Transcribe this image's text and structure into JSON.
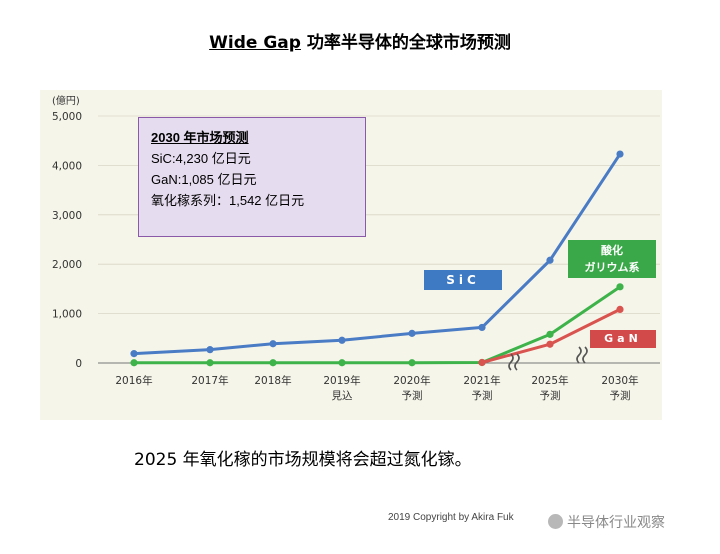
{
  "title": {
    "part1": "Wide Gap",
    "part2": " 功率半导体的全球市场预测"
  },
  "callout": {
    "heading": "2030 年市场预测",
    "lines": [
      "SiC:4,230 亿日元",
      "GaN:1,085 亿日元",
      "氧化稼系列：1,542 亿日元"
    ]
  },
  "tags": {
    "sic": "SiC",
    "ga2o3_line1": "酸化",
    "ga2o3_line2": "ガリウム系",
    "gan": "GaN"
  },
  "conclusion": "2025 年氧化稼的市场规模将会超过氮化镓。",
  "copyright": "2019 Copyright by Akira Fuk",
  "watermark": "半导体行业观察",
  "colors": {
    "sic": "#4a7cc5",
    "ga2o3": "#3db34a",
    "gan": "#d9534f",
    "panel": "#f6f5ea"
  },
  "chart_data": {
    "type": "line",
    "unit_label": "(億円)",
    "ylim": [
      0,
      5000
    ],
    "yticks": [
      "0",
      "1,000",
      "2,000",
      "3,000",
      "4,000",
      "5,000"
    ],
    "categories": [
      {
        "l1": "2016年",
        "l2": ""
      },
      {
        "l1": "2017年",
        "l2": ""
      },
      {
        "l1": "2018年",
        "l2": ""
      },
      {
        "l1": "2019年",
        "l2": "見込"
      },
      {
        "l1": "2020年",
        "l2": "予測"
      },
      {
        "l1": "2021年",
        "l2": "予測"
      },
      {
        "l1": "2025年",
        "l2": "予測"
      },
      {
        "l1": "2030年",
        "l2": "予測"
      }
    ],
    "series": [
      {
        "name": "SiC",
        "color": "#4a7cc5",
        "values": [
          190,
          270,
          390,
          460,
          600,
          720,
          2080,
          4230
        ]
      },
      {
        "name": "酸化ガリウム系",
        "color": "#3db34a",
        "values": [
          5,
          5,
          5,
          5,
          5,
          10,
          580,
          1542
        ]
      },
      {
        "name": "GaN",
        "color": "#d9534f",
        "values": [
          null,
          null,
          null,
          null,
          null,
          10,
          380,
          1085
        ]
      }
    ]
  }
}
